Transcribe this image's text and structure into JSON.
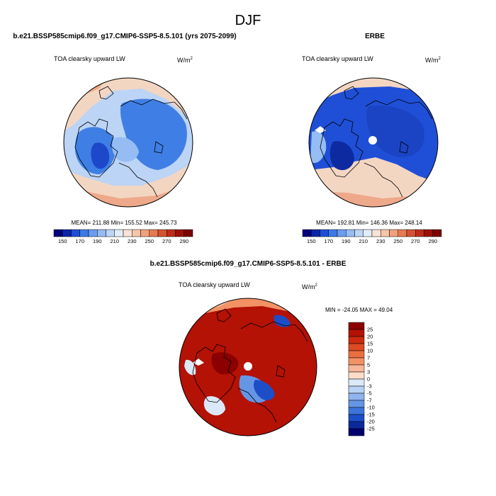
{
  "figure": {
    "title": "DJF",
    "panel_a": {
      "header": "b.e21.BSSP585cmip6.f09_g17.CMIP6-SSP5-8.5.101 (yrs 2075-2099)",
      "variable": "TOA clearsky upward LW",
      "units_base": "W/m",
      "units_exp": "2",
      "stats": "MEAN= 211.88  Min= 155.52  Max= 245.73"
    },
    "panel_b": {
      "header": "ERBE",
      "variable": "TOA clearsky upward LW",
      "units_base": "W/m",
      "units_exp": "2",
      "stats": "MEAN= 192.81  Min= 146.36  Max= 248.14"
    },
    "panel_c": {
      "header": "b.e21.BSSP585cmip6.f09_g17.CMIP6-SSP5-8.5.101 - ERBE",
      "variable": "TOA clearsky upward LW",
      "units_base": "W/m",
      "units_exp": "2",
      "stats": "MIN = -24.05 MAX =  49.04"
    }
  },
  "chart_data": [
    {
      "type": "heatmap",
      "projection": "north polar stereographic",
      "title": "b.e21.BSSP585cmip6.f09_g17.CMIP6-SSP5-8.5.101 (yrs 2075-2099)",
      "variable": "TOA clearsky upward LW",
      "units": "W/m2",
      "mean": 211.88,
      "min": 155.52,
      "max": 245.73,
      "colorbar": {
        "labels": [
          "150",
          "170",
          "190",
          "210",
          "230",
          "250",
          "270",
          "290"
        ],
        "colors": [
          "#00007a",
          "#0b26a8",
          "#1f4fd6",
          "#3c7ae8",
          "#6a9df0",
          "#95bcf3",
          "#bdd6f6",
          "#e2edf8",
          "#f8e3d6",
          "#f5c6a8",
          "#f1a27c",
          "#e67b52",
          "#d55232",
          "#be2c17",
          "#9e0f08",
          "#7a0000"
        ]
      }
    },
    {
      "type": "heatmap",
      "projection": "north polar stereographic",
      "title": "ERBE",
      "variable": "TOA clearsky upward LW",
      "units": "W/m2",
      "mean": 192.81,
      "min": 146.36,
      "max": 248.14,
      "colorbar": {
        "labels": [
          "150",
          "170",
          "190",
          "210",
          "230",
          "250",
          "270",
          "290"
        ],
        "colors": [
          "#00007a",
          "#0b26a8",
          "#1f4fd6",
          "#3c7ae8",
          "#6a9df0",
          "#95bcf3",
          "#bdd6f6",
          "#e2edf8",
          "#f8e3d6",
          "#f5c6a8",
          "#f1a27c",
          "#e67b52",
          "#d55232",
          "#be2c17",
          "#9e0f08",
          "#7a0000"
        ]
      }
    },
    {
      "type": "heatmap",
      "projection": "north polar stereographic",
      "title": "b.e21.BSSP585cmip6.f09_g17.CMIP6-SSP5-8.5.101 - ERBE",
      "variable": "TOA clearsky upward LW",
      "units": "W/m2",
      "min": -24.05,
      "max": 49.04,
      "colorbar": {
        "labels": [
          "25",
          "20",
          "15",
          "10",
          "7",
          "5",
          "3",
          "0",
          "-3",
          "-5",
          "-7",
          "-10",
          "-15",
          "-20",
          "-25"
        ],
        "colors": [
          "#8b0000",
          "#b31205",
          "#cc2a10",
          "#de4a22",
          "#ea6f3e",
          "#f39265",
          "#f7b79a",
          "#fbdcc8",
          "#dbe8f8",
          "#b8d1f4",
          "#8fb4ee",
          "#6596e6",
          "#3d74dc",
          "#1d4ec7",
          "#0a2a9c",
          "#00006e"
        ]
      }
    }
  ]
}
